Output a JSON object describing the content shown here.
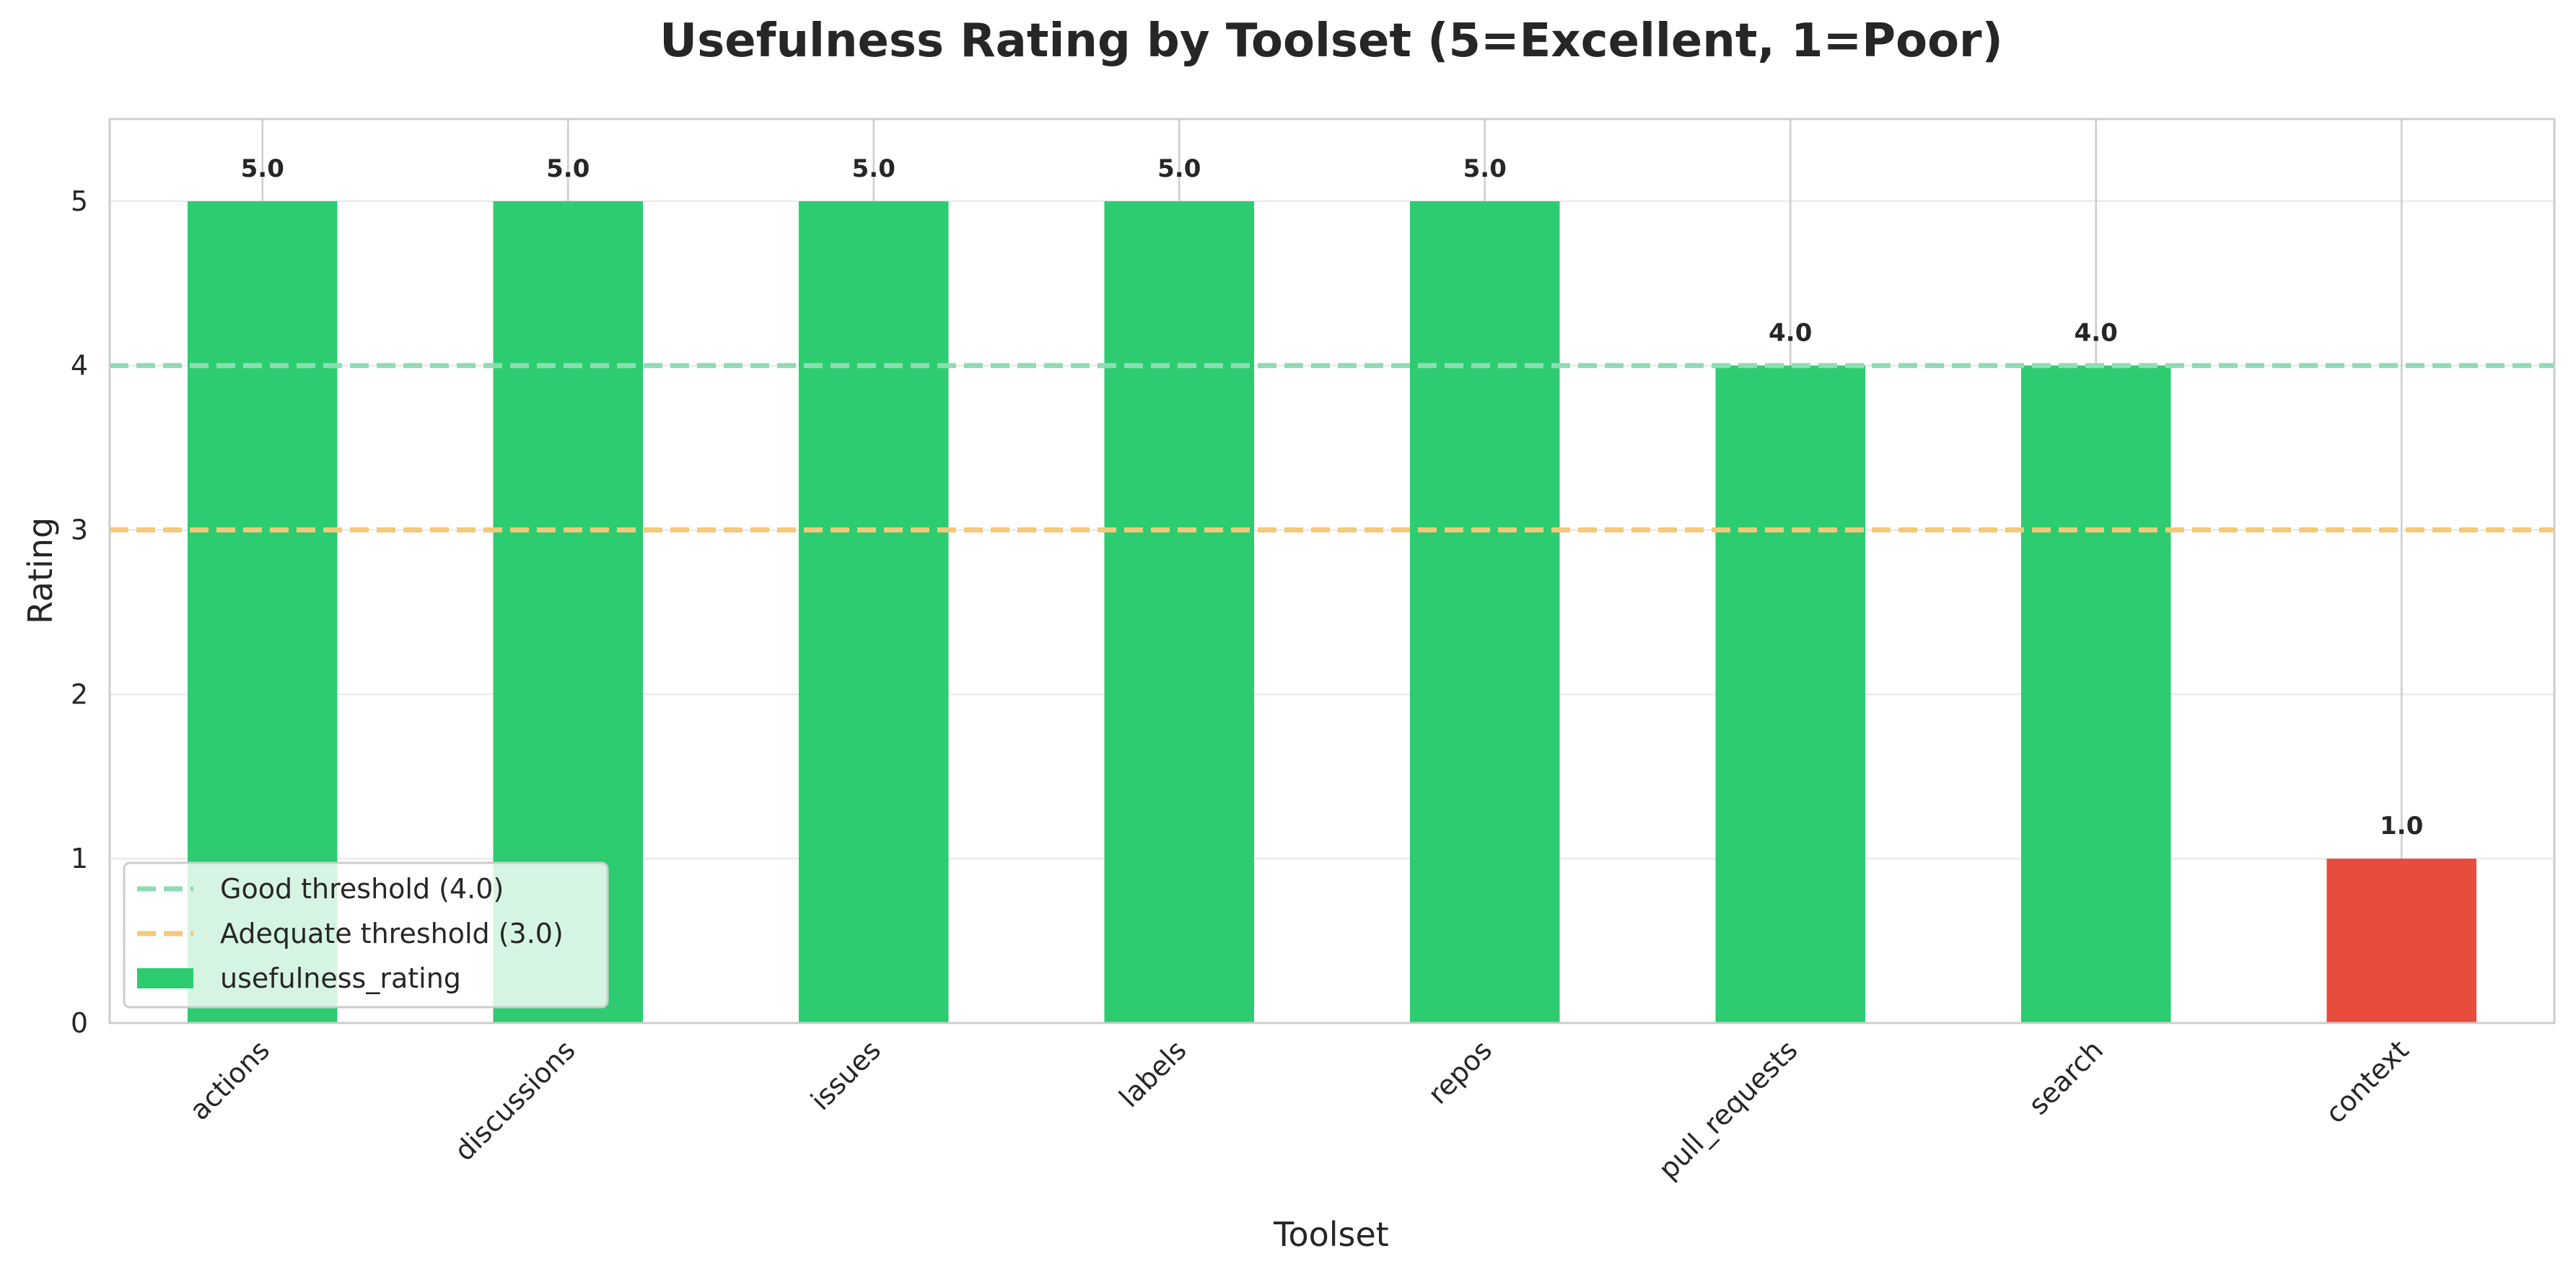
{
  "chart_data": {
    "type": "bar",
    "title": "Usefulness Rating by Toolset (5=Excellent, 1=Poor)",
    "xlabel": "Toolset",
    "ylabel": "Rating",
    "ylim": [
      0,
      5.5
    ],
    "yticks": [
      0,
      1,
      2,
      3,
      4,
      5
    ],
    "categories": [
      "actions",
      "discussions",
      "issues",
      "labels",
      "repos",
      "pull_requests",
      "search",
      "context"
    ],
    "values": [
      5.0,
      5.0,
      5.0,
      5.0,
      5.0,
      4.0,
      4.0,
      1.0
    ],
    "value_labels": [
      "5.0",
      "5.0",
      "5.0",
      "5.0",
      "5.0",
      "4.0",
      "4.0",
      "1.0"
    ],
    "bar_colors": [
      "#2ecc71",
      "#2ecc71",
      "#2ecc71",
      "#2ecc71",
      "#2ecc71",
      "#2ecc71",
      "#2ecc71",
      "#e74c3c"
    ],
    "series": [
      {
        "name": "usefulness_rating",
        "values": [
          5.0,
          5.0,
          5.0,
          5.0,
          5.0,
          4.0,
          4.0,
          1.0
        ],
        "color": "#2ecc71"
      }
    ],
    "reference_lines": [
      {
        "label": "Good threshold (4.0)",
        "value": 4.0,
        "color": "#8fdcb4",
        "style": "dashed"
      },
      {
        "label": "Adequate threshold (3.0)",
        "value": 3.0,
        "color": "#f3c97a",
        "style": "dashed"
      }
    ],
    "legend": {
      "placement": "lower-left",
      "entries": [
        "Good threshold (4.0)",
        "Adequate threshold (3.0)",
        "usefulness_rating"
      ]
    },
    "grid": true
  }
}
